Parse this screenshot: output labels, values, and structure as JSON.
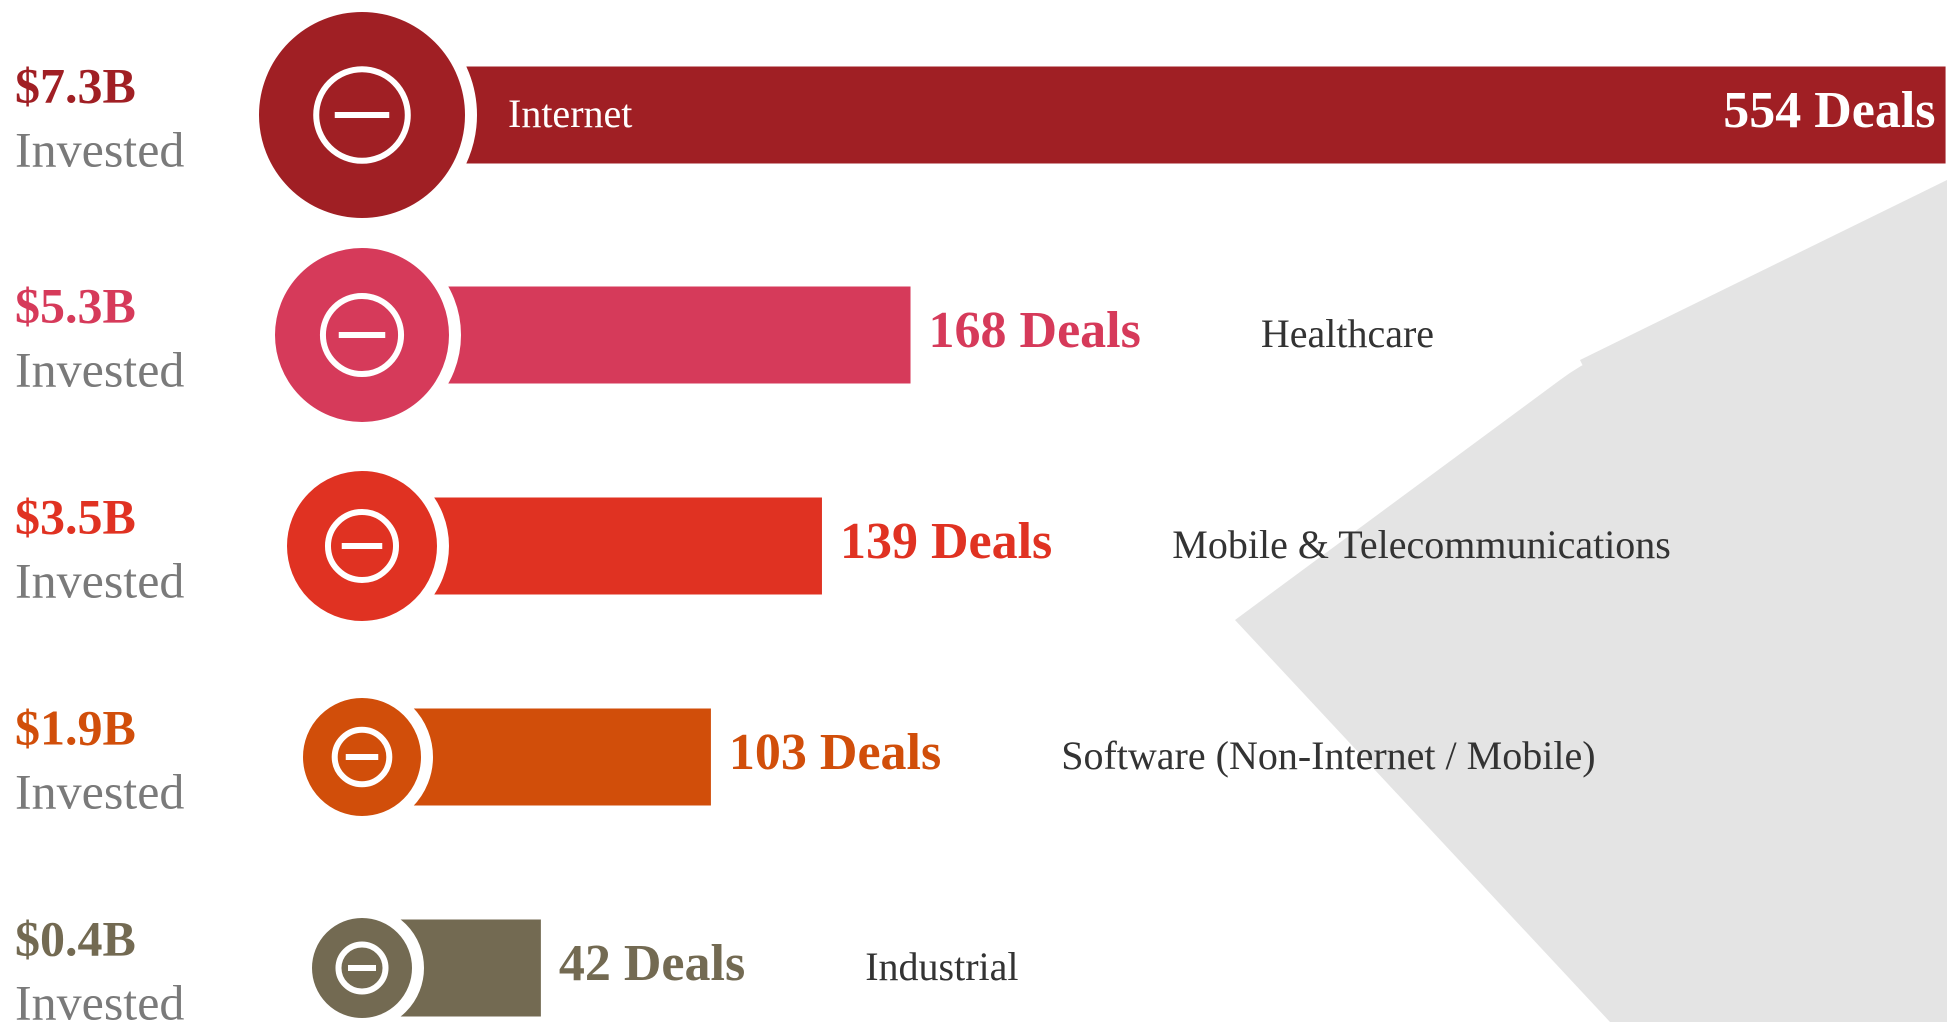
{
  "chart_data": {
    "type": "bar",
    "orientation": "horizontal",
    "categories": [
      "Internet",
      "Healthcare",
      "Mobile & Telecommunications",
      "Software (Non-Internet / Mobile)",
      "Industrial"
    ],
    "colors": [
      "#a01f24",
      "#d63a5a",
      "#e03222",
      "#d14e0a",
      "#736a52"
    ],
    "series": [
      {
        "name": "Deals",
        "values": [
          554,
          168,
          139,
          103,
          42
        ],
        "value_labels": [
          "554 Deals",
          "168 Deals",
          "139 Deals",
          "103 Deals",
          "42 Deals"
        ]
      }
    ],
    "invested": {
      "name": "Invested",
      "values": [
        7.3,
        5.3,
        3.5,
        1.9,
        0.4
      ],
      "value_labels": [
        "$7.3B",
        "$5.3B",
        "$3.5B",
        "$1.9B",
        "$0.4B"
      ]
    }
  }
}
